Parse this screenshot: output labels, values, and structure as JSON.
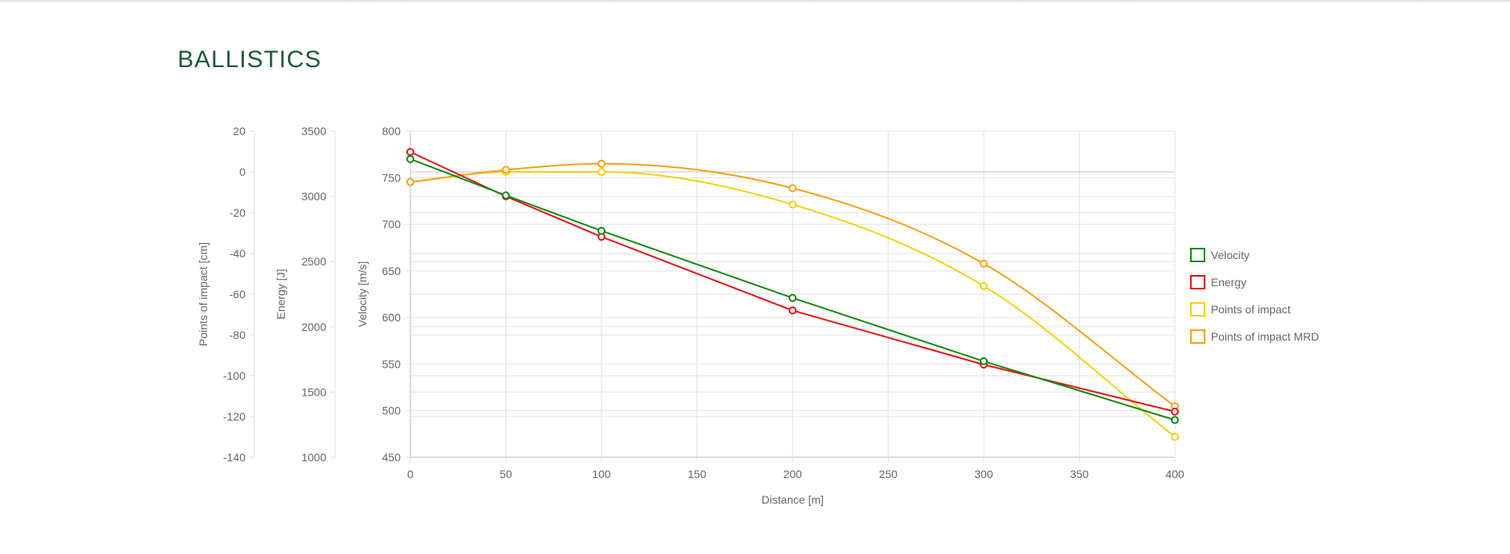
{
  "page": {
    "title": "BALLISTICS"
  },
  "colors": {
    "velocity": "#118a11",
    "energy": "#ee1111",
    "poi": "#f5d20f",
    "poi_mrd": "#f5a312",
    "grid": "#e2e2e2",
    "axis": "#bbbbbb",
    "tick": "#666666",
    "title": "#1c5a38"
  },
  "chart_data": {
    "type": "line",
    "x": [
      0,
      50,
      100,
      200,
      300,
      400
    ],
    "xlabel": "Distance [m]",
    "xlim": [
      0,
      400
    ],
    "xticks": [
      0,
      50,
      100,
      150,
      200,
      250,
      300,
      350,
      400
    ],
    "grid": true,
    "legend_position": "right",
    "axes": {
      "velocity": {
        "label": "Velocity [m/s]",
        "range": [
          450,
          800
        ],
        "ticks": [
          450,
          500,
          550,
          600,
          650,
          700,
          750,
          800
        ]
      },
      "energy": {
        "label": "Energy [J]",
        "range": [
          1000,
          3500
        ],
        "ticks": [
          1000,
          1500,
          2000,
          2500,
          3000,
          3500
        ]
      },
      "poi": {
        "label": "Points of impact [cm]",
        "range": [
          -140,
          20
        ],
        "ticks": [
          -140,
          -120,
          -100,
          -80,
          -60,
          -40,
          -20,
          0,
          20
        ]
      }
    },
    "series": [
      {
        "name": "Velocity",
        "axis": "velocity",
        "color": "#118a11",
        "smooth": false,
        "values": [
          770,
          731,
          693,
          621,
          553,
          490
        ]
      },
      {
        "name": "Energy",
        "axis": "energy",
        "color": "#ee1111",
        "smooth": false,
        "values": [
          3340,
          3000,
          2690,
          2125,
          1710,
          1350
        ]
      },
      {
        "name": "Points of impact",
        "axis": "poi",
        "color": "#f5d20f",
        "smooth": true,
        "values": [
          -5,
          0,
          0,
          -16,
          -56,
          -130
        ]
      },
      {
        "name": "Points of impact MRD",
        "axis": "poi",
        "color": "#f5a312",
        "smooth": true,
        "values": [
          -5,
          1,
          4,
          -8,
          -45,
          -115
        ]
      }
    ]
  }
}
